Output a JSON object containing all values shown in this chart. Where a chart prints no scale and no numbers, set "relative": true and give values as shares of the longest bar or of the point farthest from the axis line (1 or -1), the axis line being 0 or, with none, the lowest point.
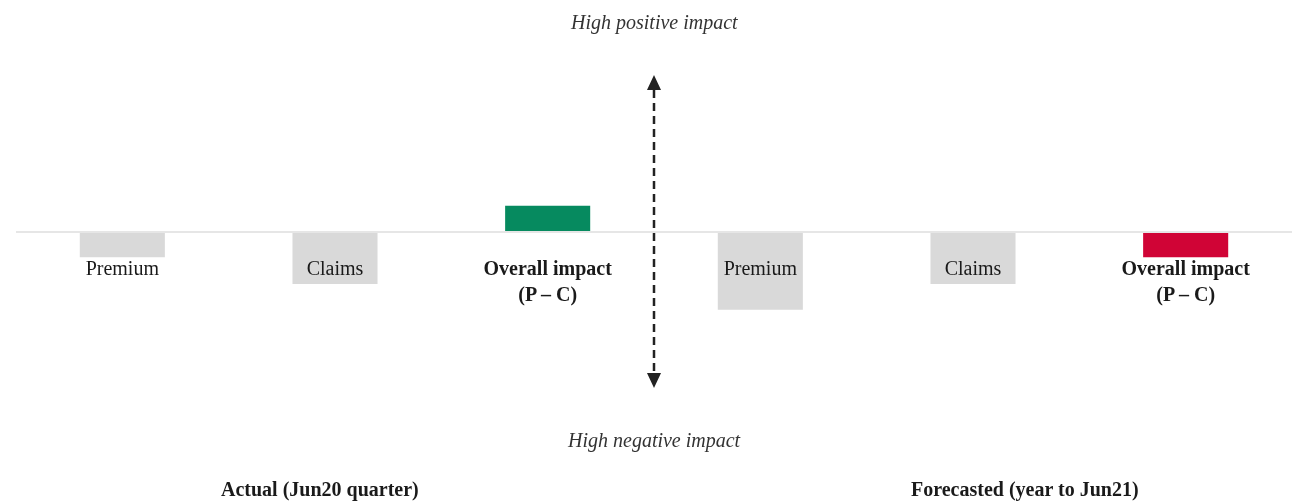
{
  "chart_data": {
    "type": "bar",
    "relative": true,
    "categories": [
      "Premium",
      "Claims",
      "Overall impact\n(P – C)",
      "Premium",
      "Claims",
      "Overall impact\n(P – C)"
    ],
    "values": [
      -0.33,
      -0.67,
      0.33,
      -1,
      -0.67,
      -0.33
    ],
    "colors": [
      "#d9d9d9",
      "#d9d9d9",
      "#068a5f",
      "#d9d9d9",
      "#d9d9d9",
      "#d00436"
    ],
    "annotations": [
      "High positive impact",
      "High negative impact",
      "Actual (Jun20 quarter)",
      "Forecasted (year to Jun21)"
    ]
  }
}
